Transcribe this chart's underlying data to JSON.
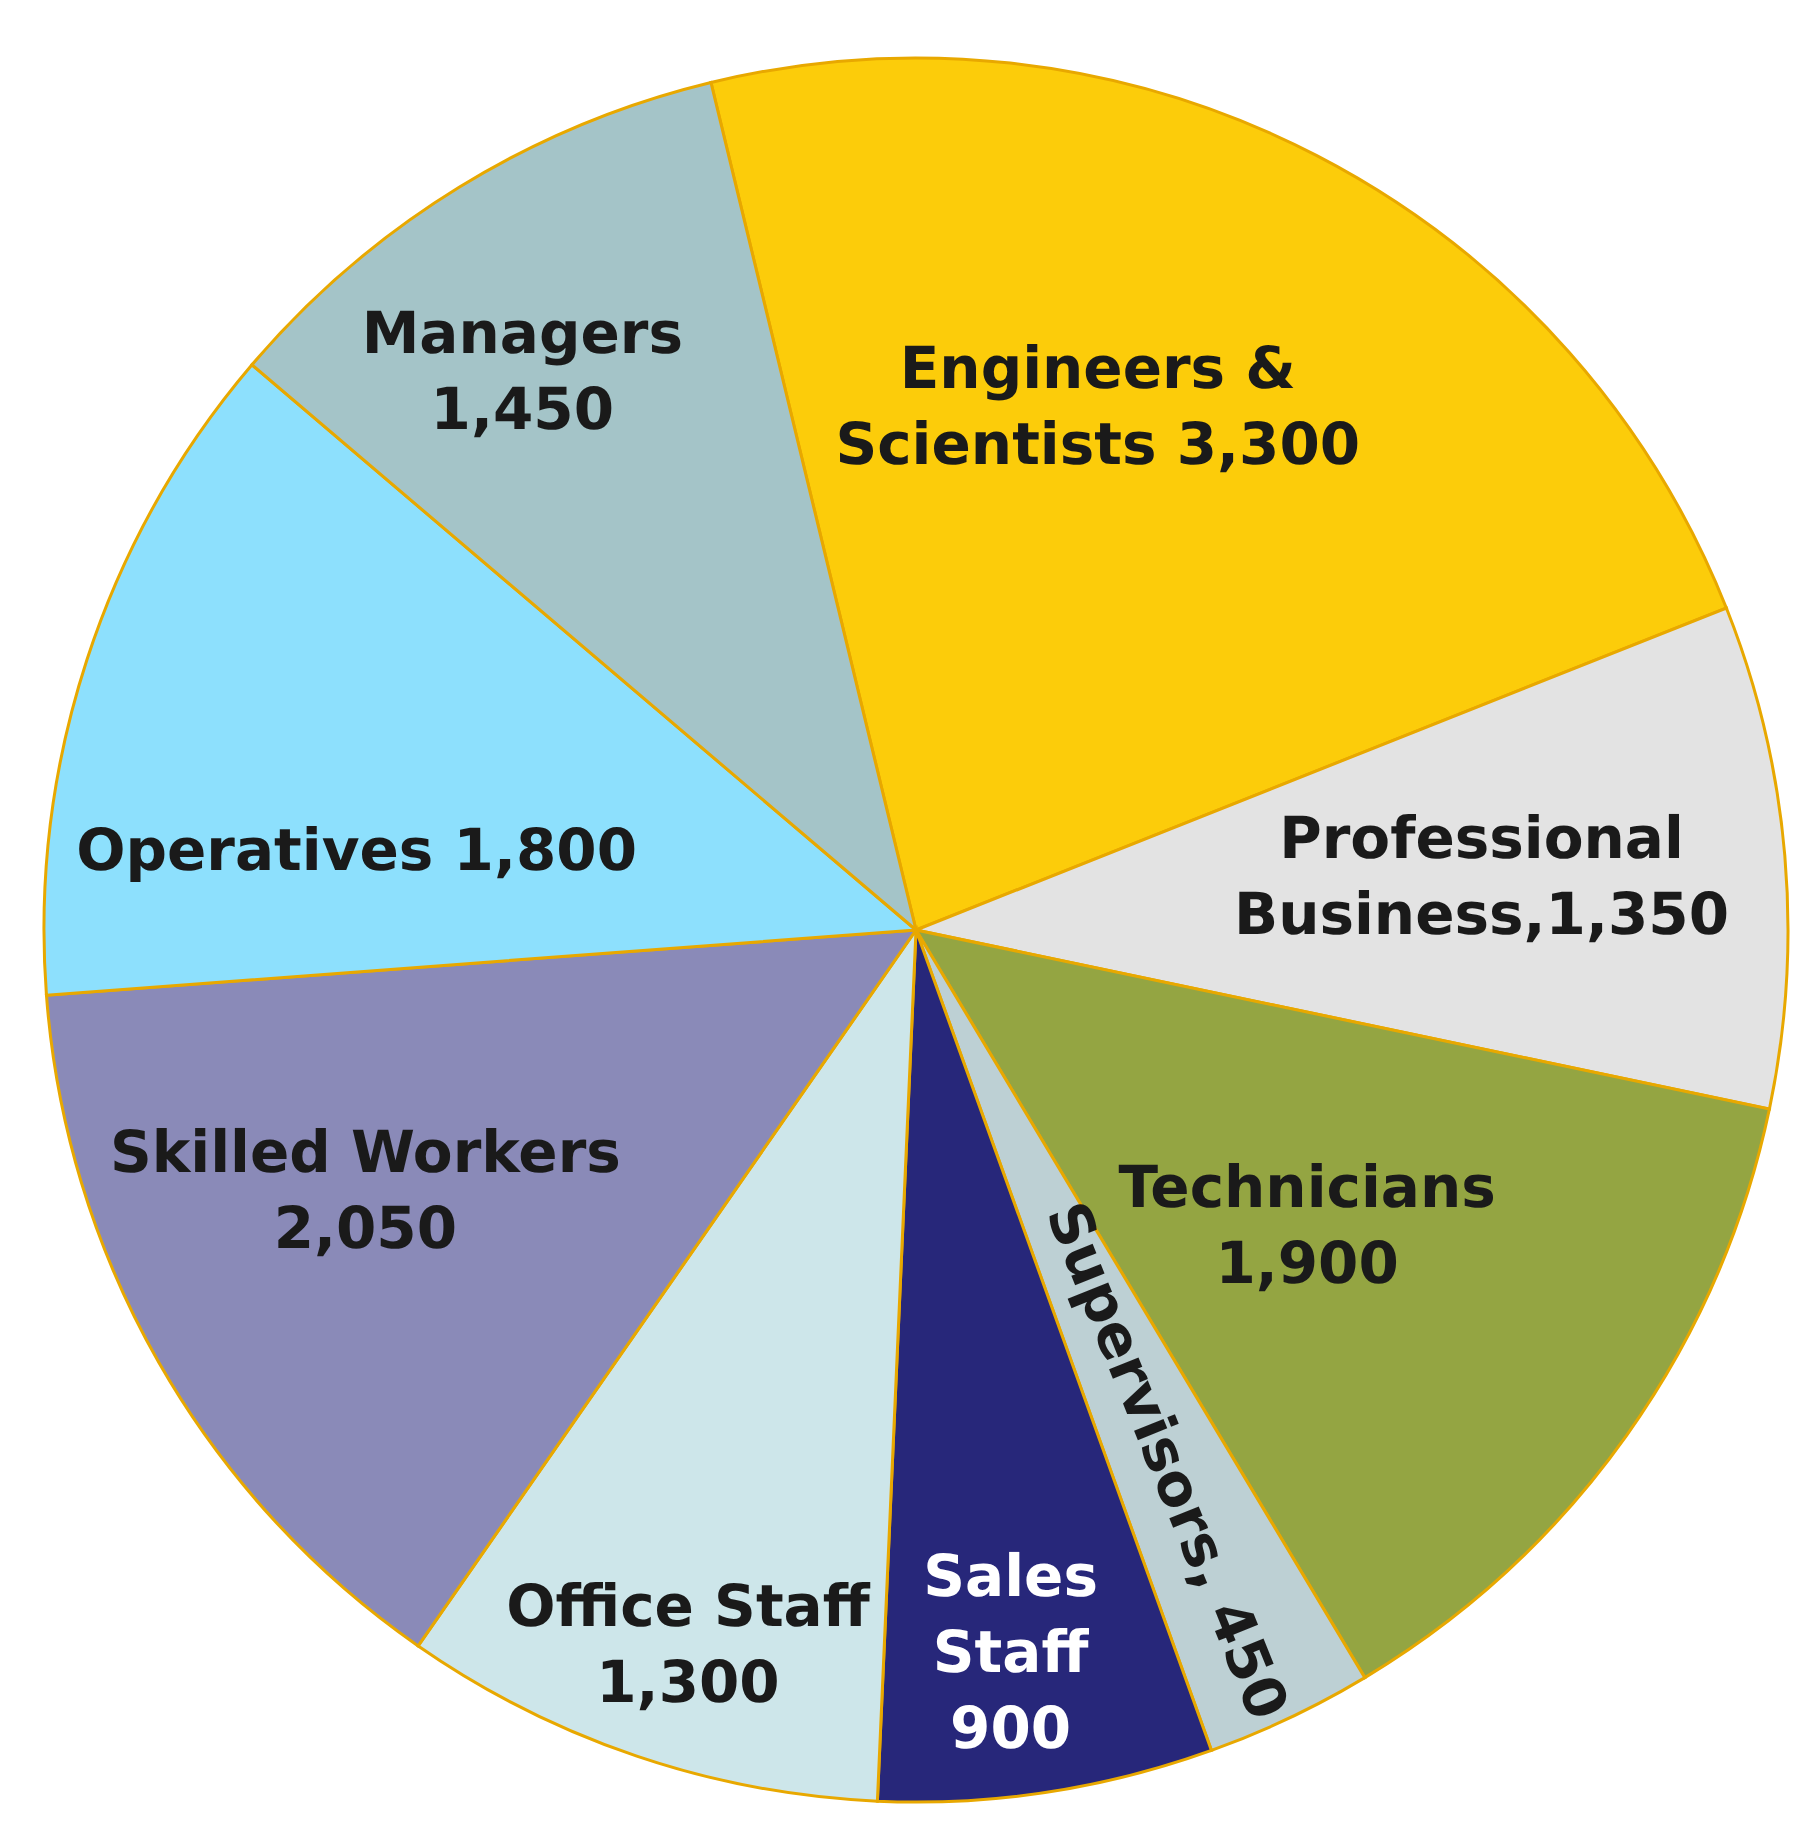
{
  "chart_data": {
    "type": "pie",
    "categories": [
      "Engineers & Scientists",
      "Professional Business",
      "Technicians",
      "Supervisors",
      "Sales Staff",
      "Office Staff",
      "Skilled Workers",
      "Operatives",
      "Managers"
    ],
    "values": [
      3300,
      1350,
      1900,
      450,
      900,
      1300,
      2050,
      1800,
      1450
    ],
    "colors": [
      "#fccc0a",
      "#e3e3e3",
      "#94a542",
      "#bdd0d4",
      "#27277a",
      "#cde6ea",
      "#8a8ab8",
      "#8de0fd",
      "#a4c4c8"
    ],
    "value_labels": [
      "3,300",
      "1,350",
      "1,900",
      "450",
      "900",
      "1,300",
      "2,050",
      "1,800",
      "1,450"
    ]
  }
}
